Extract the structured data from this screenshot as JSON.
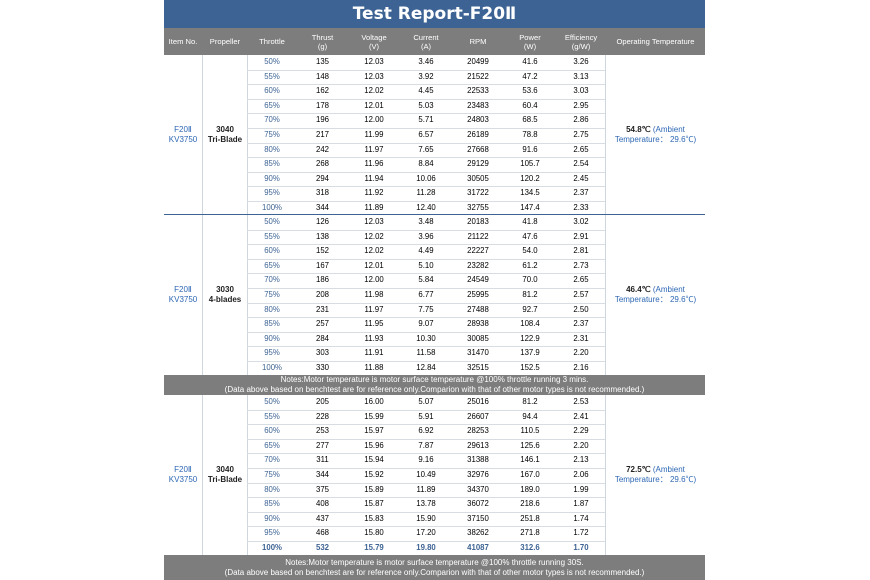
{
  "title": "Test Report-F20Ⅱ",
  "headers": [
    {
      "key": "item",
      "line1": "Item No.",
      "line2": ""
    },
    {
      "key": "propeller",
      "line1": "Propeller",
      "line2": ""
    },
    {
      "key": "throttle",
      "line1": "Throttle",
      "line2": ""
    },
    {
      "key": "thrust",
      "line1": "Thrust",
      "line2": "(g)"
    },
    {
      "key": "voltage",
      "line1": "Voltage",
      "line2": "(V)"
    },
    {
      "key": "current",
      "line1": "Current",
      "line2": "(A)"
    },
    {
      "key": "rpm",
      "line1": "RPM",
      "line2": ""
    },
    {
      "key": "power",
      "line1": "Power",
      "line2": "(W)"
    },
    {
      "key": "efficiency",
      "line1": "Efficiency",
      "line2": "(g/W)"
    },
    {
      "key": "optemp",
      "line1": "Operating Temperature",
      "line2": ""
    }
  ],
  "sections": [
    {
      "item_line1": "F20Ⅱ",
      "item_line2": "KV3750",
      "prop_line1": "3040",
      "prop_line2": "Tri-Blade",
      "temp_value": "54.8℃",
      "temp_note1": "(Ambient",
      "temp_note2": "Temperature： 29.6℃)",
      "rows": [
        [
          "50%",
          "135",
          "12.03",
          "3.46",
          "20499",
          "41.6",
          "3.26"
        ],
        [
          "55%",
          "148",
          "12.03",
          "3.92",
          "21522",
          "47.2",
          "3.13"
        ],
        [
          "60%",
          "162",
          "12.02",
          "4.45",
          "22533",
          "53.6",
          "3.03"
        ],
        [
          "65%",
          "178",
          "12.01",
          "5.03",
          "23483",
          "60.4",
          "2.95"
        ],
        [
          "70%",
          "196",
          "12.00",
          "5.71",
          "24803",
          "68.5",
          "2.86"
        ],
        [
          "75%",
          "217",
          "11.99",
          "6.57",
          "26189",
          "78.8",
          "2.75"
        ],
        [
          "80%",
          "242",
          "11.97",
          "7.65",
          "27668",
          "91.6",
          "2.65"
        ],
        [
          "85%",
          "268",
          "11.96",
          "8.84",
          "29129",
          "105.7",
          "2.54"
        ],
        [
          "90%",
          "294",
          "11.94",
          "10.06",
          "30505",
          "120.2",
          "2.45"
        ],
        [
          "95%",
          "318",
          "11.92",
          "11.28",
          "31722",
          "134.5",
          "2.37"
        ],
        [
          "100%",
          "344",
          "11.89",
          "12.40",
          "32755",
          "147.4",
          "2.33"
        ]
      ]
    },
    {
      "item_line1": "F20Ⅱ",
      "item_line2": "KV3750",
      "prop_line1": "3030",
      "prop_line2": "4-blades",
      "temp_value": "46.4℃",
      "temp_note1": "(Ambient",
      "temp_note2": "Temperature： 29.6℃)",
      "rows": [
        [
          "50%",
          "126",
          "12.03",
          "3.48",
          "20183",
          "41.8",
          "3.02"
        ],
        [
          "55%",
          "138",
          "12.02",
          "3.96",
          "21122",
          "47.6",
          "2.91"
        ],
        [
          "60%",
          "152",
          "12.02",
          "4.49",
          "22227",
          "54.0",
          "2.81"
        ],
        [
          "65%",
          "167",
          "12.01",
          "5.10",
          "23282",
          "61.2",
          "2.73"
        ],
        [
          "70%",
          "186",
          "12.00",
          "5.84",
          "24549",
          "70.0",
          "2.65"
        ],
        [
          "75%",
          "208",
          "11.98",
          "6.77",
          "25995",
          "81.2",
          "2.57"
        ],
        [
          "80%",
          "231",
          "11.97",
          "7.75",
          "27488",
          "92.7",
          "2.50"
        ],
        [
          "85%",
          "257",
          "11.95",
          "9.07",
          "28938",
          "108.4",
          "2.37"
        ],
        [
          "90%",
          "284",
          "11.93",
          "10.30",
          "30085",
          "122.9",
          "2.31"
        ],
        [
          "95%",
          "303",
          "11.91",
          "11.58",
          "31470",
          "137.9",
          "2.20"
        ],
        [
          "100%",
          "330",
          "11.88",
          "12.84",
          "32515",
          "152.5",
          "2.16"
        ]
      ]
    },
    {
      "item_line1": "F20Ⅱ",
      "item_line2": "KV3750",
      "prop_line1": "3040",
      "prop_line2": "Tri-Blade",
      "temp_value": "72.5℃",
      "temp_note1": "(Ambient",
      "temp_note2": "Temperature： 29.6℃)",
      "rows": [
        [
          "50%",
          "205",
          "16.00",
          "5.07",
          "25016",
          "81.2",
          "2.53"
        ],
        [
          "55%",
          "228",
          "15.99",
          "5.91",
          "26607",
          "94.4",
          "2.41"
        ],
        [
          "60%",
          "253",
          "15.97",
          "6.92",
          "28253",
          "110.5",
          "2.29"
        ],
        [
          "65%",
          "277",
          "15.96",
          "7.87",
          "29613",
          "125.6",
          "2.20"
        ],
        [
          "70%",
          "311",
          "15.94",
          "9.16",
          "31388",
          "146.1",
          "2.13"
        ],
        [
          "75%",
          "344",
          "15.92",
          "10.49",
          "32976",
          "167.0",
          "2.06"
        ],
        [
          "80%",
          "375",
          "15.89",
          "11.89",
          "34370",
          "189.0",
          "1.99"
        ],
        [
          "85%",
          "408",
          "15.87",
          "13.78",
          "36072",
          "218.6",
          "1.87"
        ],
        [
          "90%",
          "437",
          "15.83",
          "15.90",
          "37150",
          "251.8",
          "1.74"
        ],
        [
          "95%",
          "468",
          "15.80",
          "17.20",
          "38262",
          "271.8",
          "1.72"
        ],
        [
          "100%",
          "532",
          "15.79",
          "19.80",
          "41087",
          "312.6",
          "1.70"
        ]
      ]
    }
  ],
  "notes": [
    {
      "line1": "Notes:Motor temperature is motor surface temperature @100% throttle running 3 mins.",
      "line2": "(Data above based on benchtest are for reference only.Comparion with that of other motor types is not recommended.)"
    },
    {
      "line1": "Notes:Motor temperature is motor surface temperature @100% throttle running 30S.",
      "line2": "(Data above based on benchtest are for reference only.Comparion with that of other motor types is not recommended.)"
    }
  ],
  "colors": {
    "title_bg": "#3d6394",
    "header_bg": "#7d7d7d",
    "accent_text": "#2d67b4"
  }
}
